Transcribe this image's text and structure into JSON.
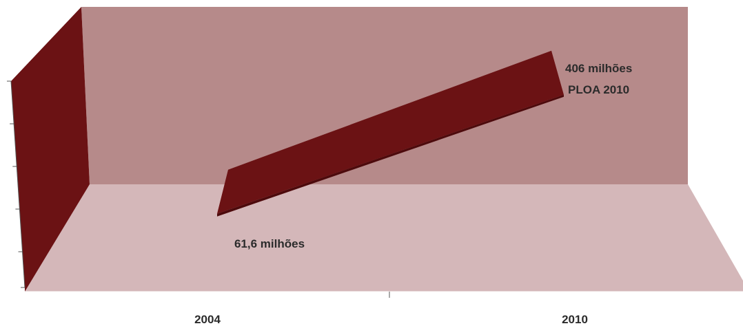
{
  "colors": {
    "back_wall": "#b68a8a",
    "floor": "#d4b7b9",
    "side_wall": "#6b1214",
    "ribbon_top": "#6b1214",
    "ribbon_front": "#4d0a0c",
    "axis": "#555555",
    "text": "#2b2b2b"
  },
  "chart_data": {
    "type": "line",
    "style": "3d-ribbon",
    "categories": [
      "2004",
      "2010"
    ],
    "series": [
      {
        "values": [
          61.6,
          406
        ]
      }
    ],
    "data_labels": {
      "start": "61,6 milhões",
      "end": "406 milhões",
      "end_note": "PLOA 2010"
    },
    "x_tick_labels": [
      "2004",
      "2010"
    ],
    "ylim": [
      0,
      500
    ],
    "grid": false,
    "legend": "none"
  }
}
